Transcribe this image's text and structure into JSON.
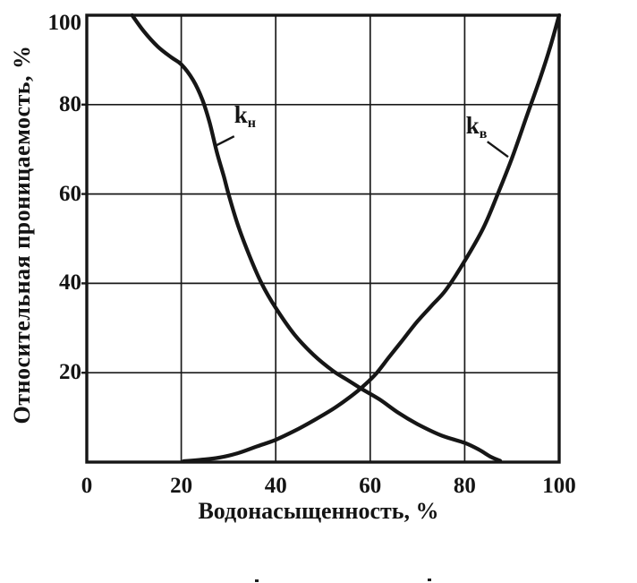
{
  "chart_data": {
    "type": "line",
    "title": "",
    "xlabel": "Водонасыщенность, %",
    "ylabel": "Относительная проницаемость, %",
    "xlim": [
      0,
      100
    ],
    "ylim": [
      0,
      100
    ],
    "x_ticks": [
      0,
      20,
      40,
      60,
      80,
      100
    ],
    "y_ticks": [
      20,
      40,
      60,
      80,
      100
    ],
    "grid": true,
    "legend_position": "inline-annotations",
    "background_color": "#ffffff",
    "line_color": "#161616",
    "grid_color": "#1a1a1a",
    "series": [
      {
        "id": "kn",
        "name": "kн",
        "label": "k",
        "label_sub": "н",
        "label_pos": [
          33.5,
          77
        ],
        "leader": [
          [
            31.2,
            72.9
          ],
          [
            27.1,
            70.7
          ]
        ],
        "points": [
          [
            9.6,
            100
          ],
          [
            12,
            96.5
          ],
          [
            15,
            93
          ],
          [
            18,
            90.5
          ],
          [
            20,
            89
          ],
          [
            22.5,
            85.5
          ],
          [
            24.5,
            81
          ],
          [
            26,
            76
          ],
          [
            27.5,
            69.5
          ],
          [
            29,
            64
          ],
          [
            30,
            60
          ],
          [
            32,
            53
          ],
          [
            34.5,
            46
          ],
          [
            37,
            40
          ],
          [
            40,
            34.5
          ],
          [
            44,
            28.5
          ],
          [
            48,
            24
          ],
          [
            52,
            20.5
          ],
          [
            55,
            18.5
          ],
          [
            58,
            16.5
          ],
          [
            62,
            14
          ],
          [
            66,
            11
          ],
          [
            70,
            8.5
          ],
          [
            75,
            6
          ],
          [
            80,
            4.3
          ],
          [
            83,
            2.8
          ],
          [
            85.5,
            1.2
          ],
          [
            87.5,
            0.3
          ]
        ]
      },
      {
        "id": "kv",
        "name": "kв",
        "label": "k",
        "label_sub": "в",
        "label_pos": [
          82.5,
          74.6
        ],
        "leader": [
          [
            84.8,
            71.7
          ],
          [
            89.2,
            68.3
          ]
        ],
        "points": [
          [
            20.5,
            0.2
          ],
          [
            24,
            0.5
          ],
          [
            28,
            1
          ],
          [
            32,
            2
          ],
          [
            36,
            3.5
          ],
          [
            40,
            5
          ],
          [
            44,
            7
          ],
          [
            48,
            9.3
          ],
          [
            52,
            11.8
          ],
          [
            55,
            14
          ],
          [
            58,
            16.5
          ],
          [
            61,
            19.5
          ],
          [
            64,
            23.5
          ],
          [
            67,
            27.5
          ],
          [
            70,
            31.5
          ],
          [
            73,
            35
          ],
          [
            76,
            38.5
          ],
          [
            80,
            45
          ],
          [
            84,
            52.5
          ],
          [
            87,
            60
          ],
          [
            90,
            68
          ],
          [
            93,
            77
          ],
          [
            96,
            86
          ],
          [
            98,
            92.5
          ],
          [
            100,
            100
          ]
        ]
      }
    ]
  }
}
